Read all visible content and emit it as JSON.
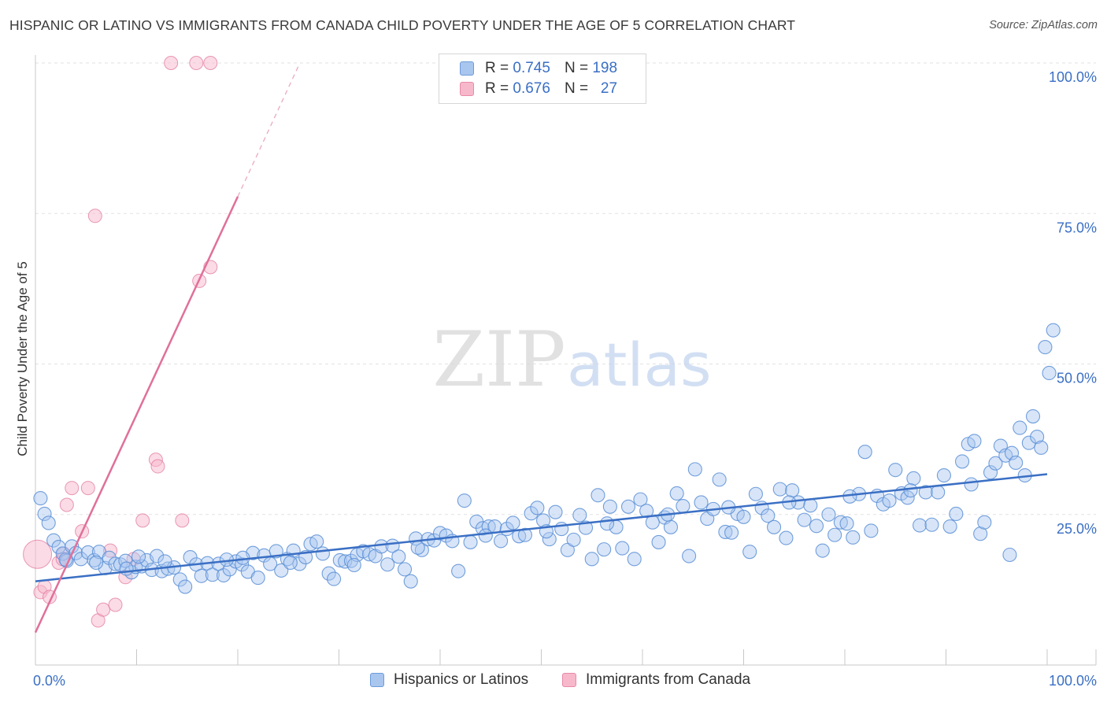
{
  "header": {
    "title": "HISPANIC OR LATINO VS IMMIGRANTS FROM CANADA CHILD POVERTY UNDER THE AGE OF 5 CORRELATION CHART",
    "source": "Source: ZipAtlas.com"
  },
  "watermark": {
    "zip": "ZIP",
    "atlas": "atlas"
  },
  "legend": {
    "rows": [
      {
        "r_label": "R =",
        "r_value": "0.745",
        "n_label": "N =",
        "n_value": "198",
        "color": "#a9c6ef",
        "border": "#6d9bd8"
      },
      {
        "r_label": "R =",
        "r_value": "0.676",
        "n_label": "N =",
        "n_value": "27",
        "color": "#f7b8cb",
        "border": "#e88aa8"
      }
    ]
  },
  "bottom_legend": {
    "blue_label": "Hispanics or Latinos",
    "pink_label": "Immigrants from Canada"
  },
  "chart_data": {
    "type": "scatter",
    "ylabel": "Child Poverty Under the Age of 5",
    "xlim": [
      0,
      100
    ],
    "ylim": [
      0,
      100
    ],
    "x_tick_labels": [
      {
        "value": 0,
        "label": "0.0%"
      },
      {
        "value": 100,
        "label": "100.0%"
      }
    ],
    "y_tick_labels": [
      {
        "value": 25,
        "label": "25.0%"
      },
      {
        "value": 50,
        "label": "50.0%"
      },
      {
        "value": 75,
        "label": "75.0%"
      },
      {
        "value": 100,
        "label": "100.0%"
      }
    ],
    "grid": true,
    "colors": {
      "blue": "#3a6fc4",
      "blue_fill": "#a9c6ef",
      "pink": "#e0709a",
      "pink_fill": "#f7b8cb",
      "tick_label": "#3a6fc4"
    },
    "series": [
      {
        "name": "Hispanics or Latinos",
        "color": "#3a6fc4",
        "trend": {
          "x": [
            0,
            100
          ],
          "y": [
            13.9,
            31.7
          ]
        },
        "points": [
          [
            0.5,
            27.7
          ],
          [
            0.9,
            25.1
          ],
          [
            1.3,
            23.6
          ],
          [
            1.8,
            20.7
          ],
          [
            2.3,
            19.6
          ],
          [
            2.7,
            18.5
          ],
          [
            3.1,
            17.3
          ],
          [
            3.6,
            19.7
          ],
          [
            4.0,
            18.6
          ],
          [
            4.5,
            17.6
          ],
          [
            5.2,
            18.7
          ],
          [
            5.8,
            17.4
          ],
          [
            6.3,
            18.8
          ],
          [
            6.9,
            16.1
          ],
          [
            7.3,
            17.8
          ],
          [
            7.9,
            16.8
          ],
          [
            8.4,
            16.7
          ],
          [
            8.9,
            17.3
          ],
          [
            9.5,
            15.4
          ],
          [
            9.9,
            16.3
          ],
          [
            10.5,
            16.4
          ],
          [
            11.0,
            17.4
          ],
          [
            11.5,
            15.8
          ],
          [
            12.0,
            18.1
          ],
          [
            12.5,
            15.6
          ],
          [
            13.1,
            16.0
          ],
          [
            13.7,
            16.2
          ],
          [
            14.3,
            14.2
          ],
          [
            14.8,
            13.0
          ],
          [
            15.3,
            17.9
          ],
          [
            15.9,
            16.7
          ],
          [
            16.4,
            14.8
          ],
          [
            17.0,
            16.9
          ],
          [
            17.5,
            15.0
          ],
          [
            18.1,
            16.8
          ],
          [
            18.6,
            14.9
          ],
          [
            19.2,
            15.9
          ],
          [
            19.8,
            17.2
          ],
          [
            20.4,
            16.7
          ],
          [
            21.0,
            15.5
          ],
          [
            21.5,
            18.6
          ],
          [
            22.0,
            14.5
          ],
          [
            22.6,
            18.2
          ],
          [
            23.2,
            16.8
          ],
          [
            23.8,
            18.9
          ],
          [
            24.3,
            15.7
          ],
          [
            24.9,
            17.6
          ],
          [
            25.5,
            19.0
          ],
          [
            26.1,
            16.8
          ],
          [
            26.7,
            17.9
          ],
          [
            27.2,
            20.1
          ],
          [
            27.8,
            20.5
          ],
          [
            28.4,
            18.5
          ],
          [
            29.0,
            15.2
          ],
          [
            29.5,
            14.3
          ],
          [
            30.1,
            17.4
          ],
          [
            30.6,
            17.2
          ],
          [
            31.2,
            17.3
          ],
          [
            31.8,
            18.3
          ],
          [
            32.4,
            18.9
          ],
          [
            33.0,
            18.4
          ],
          [
            33.6,
            18.1
          ],
          [
            34.2,
            19.7
          ],
          [
            34.8,
            16.7
          ],
          [
            35.3,
            19.8
          ],
          [
            35.9,
            18.0
          ],
          [
            36.5,
            15.9
          ],
          [
            37.1,
            13.9
          ],
          [
            37.6,
            21.0
          ],
          [
            38.2,
            19.1
          ],
          [
            38.8,
            20.9
          ],
          [
            39.4,
            20.7
          ],
          [
            40.0,
            21.9
          ],
          [
            40.6,
            21.5
          ],
          [
            41.2,
            20.6
          ],
          [
            41.8,
            15.6
          ],
          [
            42.4,
            27.3
          ],
          [
            43.0,
            20.4
          ],
          [
            43.6,
            23.8
          ],
          [
            44.2,
            22.7
          ],
          [
            44.8,
            23.0
          ],
          [
            45.4,
            23.0
          ],
          [
            46.0,
            20.6
          ],
          [
            46.6,
            22.6
          ],
          [
            47.2,
            23.6
          ],
          [
            47.8,
            21.4
          ],
          [
            48.4,
            21.6
          ],
          [
            49.0,
            25.2
          ],
          [
            49.6,
            26.1
          ],
          [
            50.2,
            24.0
          ],
          [
            50.8,
            20.9
          ],
          [
            51.4,
            25.4
          ],
          [
            52.0,
            22.6
          ],
          [
            52.6,
            19.1
          ],
          [
            53.2,
            20.8
          ],
          [
            53.8,
            24.9
          ],
          [
            54.4,
            22.8
          ],
          [
            55.0,
            17.6
          ],
          [
            55.6,
            28.2
          ],
          [
            56.2,
            19.2
          ],
          [
            56.8,
            26.3
          ],
          [
            57.4,
            22.9
          ],
          [
            58.0,
            19.4
          ],
          [
            58.6,
            26.3
          ],
          [
            59.2,
            17.6
          ],
          [
            59.8,
            27.5
          ],
          [
            60.4,
            25.6
          ],
          [
            61.0,
            23.7
          ],
          [
            61.6,
            20.4
          ],
          [
            62.2,
            24.5
          ],
          [
            62.8,
            22.9
          ],
          [
            63.4,
            28.5
          ],
          [
            64.0,
            26.4
          ],
          [
            64.6,
            18.1
          ],
          [
            65.2,
            32.5
          ],
          [
            65.8,
            27.0
          ],
          [
            66.4,
            24.3
          ],
          [
            67.0,
            25.9
          ],
          [
            67.6,
            30.8
          ],
          [
            68.2,
            22.1
          ],
          [
            68.8,
            22.0
          ],
          [
            69.4,
            25.1
          ],
          [
            70.0,
            24.6
          ],
          [
            70.6,
            18.8
          ],
          [
            71.2,
            28.4
          ],
          [
            71.8,
            26.1
          ],
          [
            72.4,
            24.8
          ],
          [
            73.0,
            22.9
          ],
          [
            73.6,
            29.2
          ],
          [
            74.2,
            21.1
          ],
          [
            74.8,
            29.0
          ],
          [
            75.4,
            27.0
          ],
          [
            76.0,
            24.1
          ],
          [
            76.6,
            26.5
          ],
          [
            77.2,
            23.1
          ],
          [
            77.8,
            19.0
          ],
          [
            78.4,
            25.0
          ],
          [
            79.0,
            21.6
          ],
          [
            79.6,
            23.7
          ],
          [
            80.2,
            23.5
          ],
          [
            80.8,
            21.2
          ],
          [
            81.4,
            28.4
          ],
          [
            82.0,
            35.4
          ],
          [
            82.6,
            22.3
          ],
          [
            83.2,
            28.1
          ],
          [
            83.8,
            26.7
          ],
          [
            84.4,
            27.3
          ],
          [
            85.0,
            32.4
          ],
          [
            85.6,
            28.5
          ],
          [
            86.2,
            27.8
          ],
          [
            86.8,
            31.0
          ],
          [
            87.4,
            23.2
          ],
          [
            88.0,
            28.7
          ],
          [
            88.6,
            23.3
          ],
          [
            89.2,
            28.7
          ],
          [
            89.8,
            31.5
          ],
          [
            90.4,
            23.0
          ],
          [
            91.0,
            25.1
          ],
          [
            91.6,
            33.8
          ],
          [
            92.2,
            36.7
          ],
          [
            92.8,
            37.2
          ],
          [
            93.4,
            21.8
          ],
          [
            93.8,
            23.7
          ],
          [
            94.4,
            32.0
          ],
          [
            94.9,
            33.5
          ],
          [
            95.4,
            36.4
          ],
          [
            95.9,
            34.8
          ],
          [
            96.3,
            18.3
          ],
          [
            96.5,
            35.2
          ],
          [
            96.9,
            33.6
          ],
          [
            97.3,
            39.4
          ],
          [
            97.8,
            31.5
          ],
          [
            98.2,
            36.9
          ],
          [
            98.6,
            41.3
          ],
          [
            99.0,
            37.9
          ],
          [
            99.4,
            36.1
          ],
          [
            99.8,
            52.8
          ],
          [
            100.2,
            48.5
          ],
          [
            100.6,
            55.6
          ],
          [
            3.0,
            17.5
          ],
          [
            6.0,
            17.0
          ],
          [
            9.0,
            16.0
          ],
          [
            12.8,
            17.2
          ],
          [
            18.9,
            17.5
          ],
          [
            25.2,
            17.0
          ],
          [
            31.5,
            16.6
          ],
          [
            37.8,
            19.5
          ],
          [
            44.5,
            21.5
          ],
          [
            50.5,
            22.2
          ],
          [
            56.5,
            23.5
          ],
          [
            62.5,
            25.0
          ],
          [
            68.5,
            26.2
          ],
          [
            74.5,
            27.0
          ],
          [
            80.5,
            28.0
          ],
          [
            86.5,
            29.0
          ],
          [
            92.5,
            30.0
          ],
          [
            10.2,
            18.0
          ],
          [
            20.5,
            17.8
          ]
        ]
      },
      {
        "name": "Immigrants from Canada",
        "color": "#e0709a",
        "trend": {
          "x": [
            0,
            20
          ],
          "y": [
            5.4,
            77.8
          ]
        },
        "trend_dashed": {
          "x": [
            20,
            26
          ],
          "y": [
            77.8,
            99.5
          ]
        },
        "points": [
          [
            0.2,
            18.4
          ],
          [
            0.5,
            12.1
          ],
          [
            0.9,
            13.0
          ],
          [
            1.4,
            11.3
          ],
          [
            2.3,
            17.0
          ],
          [
            2.8,
            18.5
          ],
          [
            3.1,
            26.6
          ],
          [
            3.6,
            29.4
          ],
          [
            4.6,
            22.2
          ],
          [
            5.2,
            29.4
          ],
          [
            6.2,
            7.4
          ],
          [
            6.7,
            9.2
          ],
          [
            7.4,
            19.0
          ],
          [
            7.9,
            10.0
          ],
          [
            8.9,
            14.6
          ],
          [
            9.7,
            17.6
          ],
          [
            10.6,
            24.0
          ],
          [
            11.9,
            34.1
          ],
          [
            12.1,
            33.0
          ],
          [
            14.5,
            24.0
          ],
          [
            16.2,
            63.8
          ],
          [
            17.3,
            66.1
          ],
          [
            5.9,
            74.6
          ],
          [
            13.4,
            100.0
          ],
          [
            15.9,
            100.0
          ],
          [
            17.3,
            100.0
          ],
          [
            2.7,
            17.6
          ]
        ]
      }
    ]
  }
}
